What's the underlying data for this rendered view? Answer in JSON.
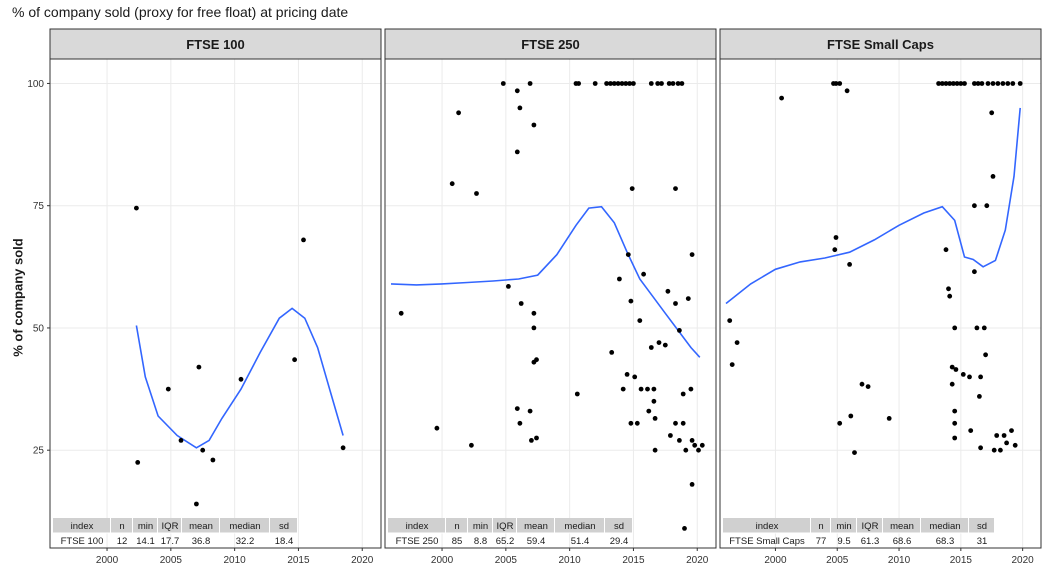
{
  "figure": {
    "title": "% of company sold (proxy for free float) at pricing date",
    "ylabel": "% of company sold"
  },
  "colors": {
    "strip_fill": "#d9d9d9",
    "panel_border": "#333333",
    "grid": "#ebebeb",
    "smooth_line": "#3366ff",
    "points": "#000000",
    "table_header": "#d0d0d0"
  },
  "chart_data": [
    {
      "type": "scatter",
      "panel": "FTSE 100",
      "xlim": [
        1996,
        2021
      ],
      "ylim": [
        5,
        105
      ],
      "x_ticks": [
        2000,
        2005,
        2010,
        2015,
        2020
      ],
      "y_ticks": [
        25,
        50,
        75,
        100
      ],
      "grid": true,
      "points": [
        [
          2002.3,
          74.5
        ],
        [
          2002.4,
          22.5
        ],
        [
          2004.8,
          37.5
        ],
        [
          2005.8,
          27
        ],
        [
          2007.2,
          42
        ],
        [
          2007.5,
          25
        ],
        [
          2008.3,
          23
        ],
        [
          2007,
          14
        ],
        [
          2010.5,
          39.5
        ],
        [
          2014.7,
          43.5
        ],
        [
          2015.4,
          68
        ],
        [
          2018.5,
          25.5
        ]
      ],
      "smooth": [
        [
          2002.3,
          50.5
        ],
        [
          2003,
          40
        ],
        [
          2004,
          32
        ],
        [
          2005.5,
          28
        ],
        [
          2007,
          25.5
        ],
        [
          2008,
          27
        ],
        [
          2009,
          31.5
        ],
        [
          2010.5,
          37.5
        ],
        [
          2012,
          45
        ],
        [
          2013.5,
          52
        ],
        [
          2014.5,
          54
        ],
        [
          2015.5,
          52
        ],
        [
          2016.5,
          46
        ],
        [
          2017.5,
          37
        ],
        [
          2018.5,
          28
        ]
      ],
      "stats": {
        "headers": [
          "index",
          "n",
          "min",
          "IQR",
          "mean",
          "median",
          "sd"
        ],
        "values": [
          "FTSE 100",
          "12",
          "14.1",
          "17.7",
          "36.8",
          "32.2",
          "18.4"
        ]
      }
    },
    {
      "type": "scatter",
      "panel": "FTSE 250",
      "xlim": [
        1996,
        2021
      ],
      "ylim": [
        5,
        105
      ],
      "x_ticks": [
        2000,
        2005,
        2010,
        2015,
        2020
      ],
      "y_ticks": [
        25,
        50,
        75,
        100
      ],
      "grid": true,
      "points": [
        [
          1996.8,
          53
        ],
        [
          1999.6,
          29.5
        ],
        [
          2000.8,
          79.5
        ],
        [
          2001.3,
          94
        ],
        [
          2002.3,
          26
        ],
        [
          2002.7,
          77.5
        ],
        [
          2004.8,
          100
        ],
        [
          2005.2,
          58.5
        ],
        [
          2005.9,
          98.5
        ],
        [
          2006.1,
          95
        ],
        [
          2005.9,
          86
        ],
        [
          2005.9,
          33.5
        ],
        [
          2006.1,
          30.5
        ],
        [
          2006.2,
          55
        ],
        [
          2006.9,
          100
        ],
        [
          2007.2,
          91.5
        ],
        [
          2007.2,
          53
        ],
        [
          2007.2,
          50
        ],
        [
          2007.4,
          43.5
        ],
        [
          2007.2,
          43
        ],
        [
          2006.9,
          33
        ],
        [
          2007.4,
          27.5
        ],
        [
          2007,
          27
        ],
        [
          2010.5,
          100
        ],
        [
          2010.7,
          100
        ],
        [
          2010.6,
          36.5
        ],
        [
          2012,
          100
        ],
        [
          2012.9,
          100
        ],
        [
          2013.2,
          100
        ],
        [
          2013.5,
          100
        ],
        [
          2013.8,
          100
        ],
        [
          2014.1,
          100
        ],
        [
          2014.4,
          100
        ],
        [
          2014.7,
          100
        ],
        [
          2015,
          100
        ],
        [
          2016.4,
          100
        ],
        [
          2016.9,
          100
        ],
        [
          2017.2,
          100
        ],
        [
          2017.8,
          100
        ],
        [
          2018.1,
          100
        ],
        [
          2018.5,
          100
        ],
        [
          2018.8,
          100
        ],
        [
          2013.3,
          45
        ],
        [
          2013.9,
          60
        ],
        [
          2014.2,
          37.5
        ],
        [
          2014.5,
          40.5
        ],
        [
          2014.6,
          65
        ],
        [
          2014.8,
          55.5
        ],
        [
          2014.9,
          78.5
        ],
        [
          2015.1,
          40
        ],
        [
          2015.5,
          51.5
        ],
        [
          2015.8,
          61
        ],
        [
          2015.6,
          37.5
        ],
        [
          2016.1,
          37.5
        ],
        [
          2016.4,
          46
        ],
        [
          2016.6,
          37.5
        ],
        [
          2016.2,
          33
        ],
        [
          2016.6,
          35
        ],
        [
          2016.7,
          31.5
        ],
        [
          2016.7,
          25
        ],
        [
          2014.8,
          30.5
        ],
        [
          2015.3,
          30.5
        ],
        [
          2017.5,
          46.5
        ],
        [
          2017.7,
          57.5
        ],
        [
          2017.9,
          28
        ],
        [
          2018.3,
          55
        ],
        [
          2018.3,
          78.5
        ],
        [
          2018.3,
          30.5
        ],
        [
          2018.6,
          27
        ],
        [
          2018.6,
          49.5
        ],
        [
          2018.9,
          30.5
        ],
        [
          2018.9,
          36.5
        ],
        [
          2019.3,
          56
        ],
        [
          2019.5,
          37.5
        ],
        [
          2019.6,
          65
        ],
        [
          2019.6,
          18
        ],
        [
          2019.6,
          27
        ],
        [
          2019.8,
          26
        ],
        [
          2020.1,
          25
        ],
        [
          2020.4,
          26
        ],
        [
          2019,
          9
        ],
        [
          2019.1,
          25
        ],
        [
          2017,
          47
        ]
      ],
      "smooth": [
        [
          1996,
          59
        ],
        [
          1998,
          58.8
        ],
        [
          2000,
          59
        ],
        [
          2002,
          59.3
        ],
        [
          2004,
          59.6
        ],
        [
          2006,
          60
        ],
        [
          2007.5,
          60.8
        ],
        [
          2009,
          65
        ],
        [
          2010.5,
          71
        ],
        [
          2011.5,
          74.5
        ],
        [
          2012.5,
          74.8
        ],
        [
          2013.5,
          71.5
        ],
        [
          2014.5,
          65.5
        ],
        [
          2015.5,
          60
        ],
        [
          2016.5,
          56.5
        ],
        [
          2017.5,
          53
        ],
        [
          2018.5,
          49.5
        ],
        [
          2019.5,
          46
        ],
        [
          2020.2,
          44
        ]
      ],
      "stats": {
        "headers": [
          "index",
          "n",
          "min",
          "IQR",
          "mean",
          "median",
          "sd"
        ],
        "values": [
          "FTSE 250",
          "85",
          "8.8",
          "65.2",
          "59.4",
          "51.4",
          "29.4"
        ]
      }
    },
    {
      "type": "scatter",
      "panel": "FTSE Small Caps",
      "xlim": [
        1996,
        2021
      ],
      "ylim": [
        5,
        105
      ],
      "x_ticks": [
        2000,
        2005,
        2010,
        2015,
        2020
      ],
      "y_ticks": [
        25,
        50,
        75,
        100
      ],
      "grid": true,
      "points": [
        [
          1996.3,
          51.5
        ],
        [
          1996.5,
          42.5
        ],
        [
          1996.9,
          47
        ],
        [
          2000.5,
          97
        ],
        [
          2004.7,
          100
        ],
        [
          2004.9,
          100
        ],
        [
          2005.2,
          100
        ],
        [
          2004.8,
          66
        ],
        [
          2004.9,
          68.5
        ],
        [
          2005.2,
          30.5
        ],
        [
          2005.8,
          98.5
        ],
        [
          2006,
          63
        ],
        [
          2006.1,
          32
        ],
        [
          2006.4,
          24.5
        ],
        [
          2007,
          38.5
        ],
        [
          2007.5,
          38
        ],
        [
          2009.2,
          31.5
        ],
        [
          2013.2,
          100
        ],
        [
          2013.5,
          100
        ],
        [
          2013.8,
          100
        ],
        [
          2014.1,
          100
        ],
        [
          2014.4,
          100
        ],
        [
          2014.7,
          100
        ],
        [
          2015,
          100
        ],
        [
          2015.3,
          100
        ],
        [
          2016.1,
          100
        ],
        [
          2016.4,
          100
        ],
        [
          2016.7,
          100
        ],
        [
          2017.2,
          100
        ],
        [
          2017.6,
          100
        ],
        [
          2018,
          100
        ],
        [
          2018.4,
          100
        ],
        [
          2018.8,
          100
        ],
        [
          2019.2,
          100
        ],
        [
          2019.8,
          100
        ],
        [
          2013.8,
          66
        ],
        [
          2014,
          58
        ],
        [
          2014.1,
          56.5
        ],
        [
          2014.3,
          42
        ],
        [
          2014.6,
          41.5
        ],
        [
          2014.3,
          38.5
        ],
        [
          2014.5,
          33
        ],
        [
          2014.5,
          30.5
        ],
        [
          2014.5,
          27.5
        ],
        [
          2014.5,
          50
        ],
        [
          2015.2,
          40.5
        ],
        [
          2015.7,
          40
        ],
        [
          2015.8,
          29
        ],
        [
          2016.1,
          61.5
        ],
        [
          2016.1,
          75
        ],
        [
          2016.3,
          50
        ],
        [
          2016.5,
          36
        ],
        [
          2016.6,
          25.5
        ],
        [
          2016.6,
          40
        ],
        [
          2016.9,
          50
        ],
        [
          2017,
          44.5
        ],
        [
          2017.1,
          75
        ],
        [
          2017.5,
          94
        ],
        [
          2017.6,
          81
        ],
        [
          2017.7,
          25
        ],
        [
          2018.2,
          25
        ],
        [
          2017.9,
          28
        ],
        [
          2018.5,
          28
        ],
        [
          2018.7,
          26.5
        ],
        [
          2019.1,
          29
        ],
        [
          2019.4,
          26
        ]
      ],
      "smooth": [
        [
          1996,
          55
        ],
        [
          1998,
          59
        ],
        [
          2000,
          62
        ],
        [
          2002,
          63.5
        ],
        [
          2004,
          64.3
        ],
        [
          2006,
          65.5
        ],
        [
          2008,
          68
        ],
        [
          2010,
          71
        ],
        [
          2012,
          73.5
        ],
        [
          2013.5,
          74.8
        ],
        [
          2014.5,
          72
        ],
        [
          2015.3,
          64.5
        ],
        [
          2016,
          64
        ],
        [
          2016.8,
          62.5
        ],
        [
          2017.8,
          63.8
        ],
        [
          2018.6,
          70
        ],
        [
          2019.3,
          81
        ],
        [
          2019.8,
          95
        ]
      ],
      "stats": {
        "headers": [
          "index",
          "n",
          "min",
          "IQR",
          "mean",
          "median",
          "sd"
        ],
        "values": [
          "FTSE Small Caps",
          "77",
          "9.5",
          "61.3",
          "68.6",
          "68.3",
          "31"
        ]
      }
    }
  ]
}
